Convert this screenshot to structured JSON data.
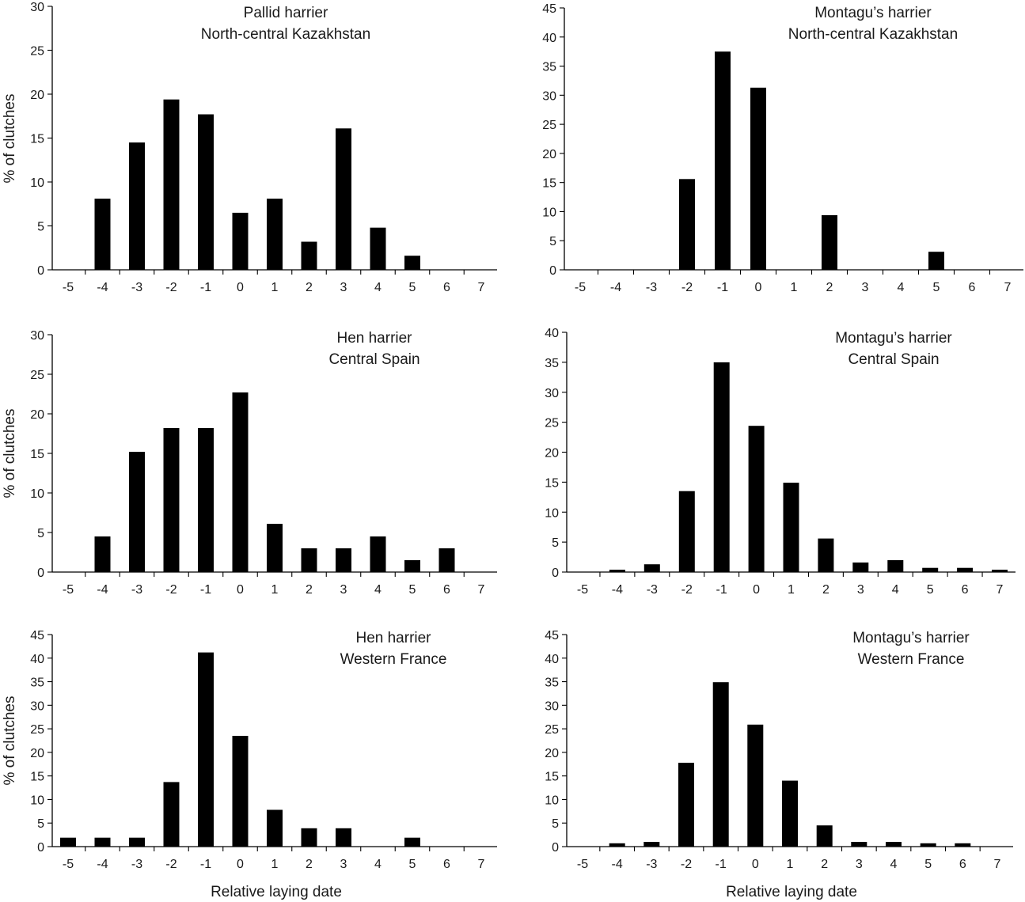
{
  "figure": {
    "ylabel": "% of clutches",
    "xlabel": "Relative laying date",
    "bar_color": "#000000"
  },
  "chart_data": [
    {
      "type": "bar",
      "title_lines": [
        "Pallid harrier",
        "North-central Kazakhstan"
      ],
      "ylabel": "% of clutches",
      "xlabel": "",
      "categories": [
        "-5",
        "-4",
        "-3",
        "-2",
        "-1",
        "0",
        "1",
        "2",
        "3",
        "4",
        "5",
        "6",
        "7"
      ],
      "values": [
        0,
        8.1,
        14.5,
        19.4,
        17.7,
        6.5,
        8.1,
        3.2,
        16.1,
        4.8,
        1.6,
        0,
        0
      ],
      "ylim": [
        0,
        30
      ],
      "yticks": [
        0,
        5,
        10,
        15,
        20,
        25,
        30
      ]
    },
    {
      "type": "bar",
      "title_lines": [
        "Montagu’s harrier",
        "North-central Kazakhstan"
      ],
      "ylabel": "",
      "xlabel": "",
      "categories": [
        "-5",
        "-4",
        "-3",
        "-2",
        "-1",
        "0",
        "1",
        "2",
        "3",
        "4",
        "5",
        "6",
        "7"
      ],
      "values": [
        0,
        0,
        0,
        15.6,
        37.5,
        31.3,
        0,
        9.4,
        0,
        0,
        3.1,
        0,
        0
      ],
      "ylim": [
        0,
        45
      ],
      "yticks": [
        0,
        5,
        10,
        15,
        20,
        25,
        30,
        35,
        40,
        45
      ]
    },
    {
      "type": "bar",
      "title_lines": [
        "Hen harrier",
        "Central Spain"
      ],
      "ylabel": "% of clutches",
      "xlabel": "",
      "categories": [
        "-5",
        "-4",
        "-3",
        "-2",
        "-1",
        "0",
        "1",
        "2",
        "3",
        "4",
        "5",
        "6",
        "7"
      ],
      "values": [
        0,
        4.5,
        15.2,
        18.2,
        18.2,
        22.7,
        6.1,
        3.0,
        3.0,
        4.5,
        1.5,
        3.0,
        0
      ],
      "ylim": [
        0,
        30
      ],
      "yticks": [
        0,
        5,
        10,
        15,
        20,
        25,
        30
      ]
    },
    {
      "type": "bar",
      "title_lines": [
        "Montagu’s harrier",
        "Central Spain"
      ],
      "ylabel": "",
      "xlabel": "",
      "categories": [
        "-5",
        "-4",
        "-3",
        "-2",
        "-1",
        "0",
        "1",
        "2",
        "3",
        "4",
        "5",
        "6",
        "7"
      ],
      "values": [
        0,
        0.4,
        1.3,
        13.5,
        35.0,
        24.4,
        14.9,
        5.6,
        1.6,
        2.0,
        0.7,
        0.7,
        0.4
      ],
      "ylim": [
        0,
        40
      ],
      "yticks": [
        0,
        5,
        10,
        15,
        20,
        25,
        30,
        35,
        40
      ]
    },
    {
      "type": "bar",
      "title_lines": [
        "Hen harrier",
        "Western France"
      ],
      "ylabel": "% of clutches",
      "xlabel": "Relative laying date",
      "categories": [
        "-5",
        "-4",
        "-3",
        "-2",
        "-1",
        "0",
        "1",
        "2",
        "3",
        "4",
        "5",
        "6",
        "7"
      ],
      "values": [
        1.9,
        1.9,
        1.9,
        13.7,
        41.2,
        23.5,
        7.8,
        3.9,
        3.9,
        0,
        1.9,
        0,
        0
      ],
      "ylim": [
        0,
        45
      ],
      "yticks": [
        0,
        5,
        10,
        15,
        20,
        25,
        30,
        35,
        40,
        45
      ]
    },
    {
      "type": "bar",
      "title_lines": [
        "Montagu’s harrier",
        "Western France"
      ],
      "ylabel": "",
      "xlabel": "Relative laying date",
      "categories": [
        "-5",
        "-4",
        "-3",
        "-2",
        "-1",
        "0",
        "1",
        "2",
        "3",
        "4",
        "5",
        "6",
        "7"
      ],
      "values": [
        0,
        0.7,
        1.0,
        17.8,
        34.9,
        25.9,
        14.0,
        4.5,
        1.0,
        1.0,
        0.7,
        0.7,
        0
      ],
      "ylim": [
        0,
        45
      ],
      "yticks": [
        0,
        5,
        10,
        15,
        20,
        25,
        30,
        35,
        40,
        45
      ]
    }
  ]
}
